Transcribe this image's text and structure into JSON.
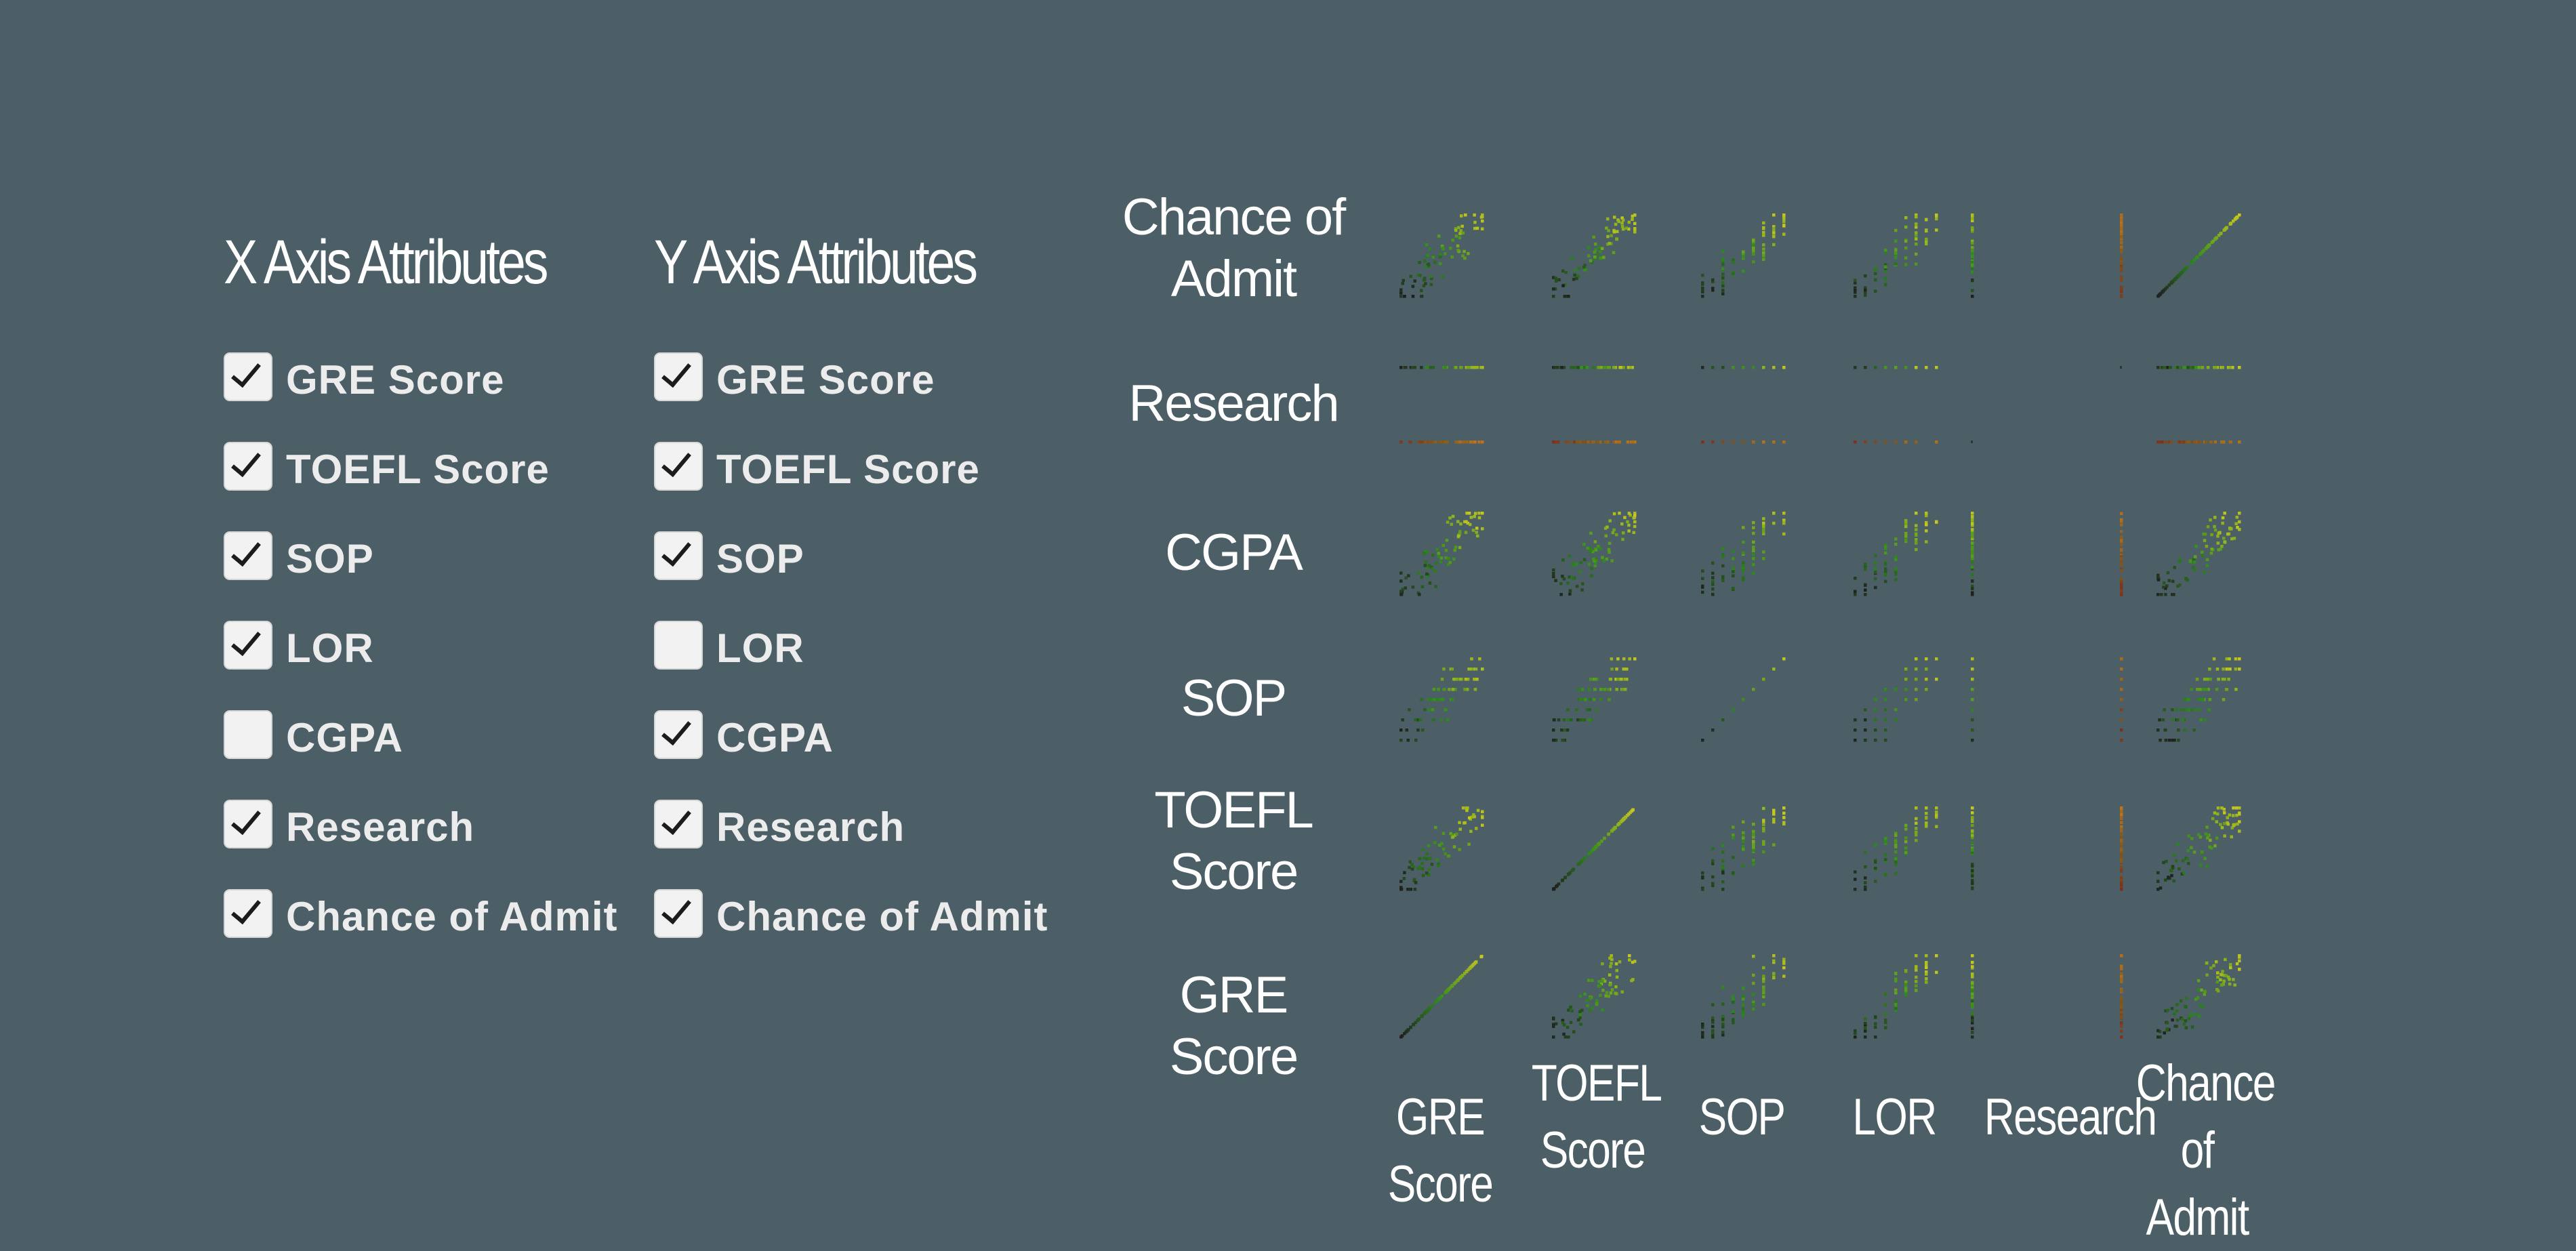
{
  "x_panel": {
    "title": "X Axis Attributes",
    "attributes": [
      {
        "label": "GRE Score",
        "checked": true
      },
      {
        "label": "TOEFL Score",
        "checked": true
      },
      {
        "label": "SOP",
        "checked": true
      },
      {
        "label": "LOR",
        "checked": true
      },
      {
        "label": "CGPA",
        "checked": false
      },
      {
        "label": "Research",
        "checked": true
      },
      {
        "label": "Chance of Admit",
        "checked": true
      }
    ]
  },
  "y_panel": {
    "title": "Y Axis Attributes",
    "attributes": [
      {
        "label": "GRE Score",
        "checked": true
      },
      {
        "label": "TOEFL Score",
        "checked": true
      },
      {
        "label": "SOP",
        "checked": true
      },
      {
        "label": "LOR",
        "checked": false
      },
      {
        "label": "CGPA",
        "checked": true
      },
      {
        "label": "Research",
        "checked": true
      },
      {
        "label": "Chance of Admit",
        "checked": true
      }
    ]
  },
  "chart_data": {
    "type": "scatter",
    "kind": "scatterplot-matrix",
    "row_labels": [
      [
        "Chance of",
        "Admit"
      ],
      [
        "Research"
      ],
      [
        "CGPA"
      ],
      [
        "SOP"
      ],
      [
        "TOEFL",
        "Score"
      ],
      [
        "GRE Score"
      ]
    ],
    "col_labels": [
      [
        "GRE Score"
      ],
      [
        "TOEFL",
        "Score"
      ],
      [
        "SOP"
      ],
      [
        "LOR"
      ],
      [
        "Research"
      ],
      [
        "Chance of",
        "Admit"
      ]
    ],
    "rows": [
      "Chance of Admit",
      "Research",
      "CGPA",
      "SOP",
      "TOEFL Score",
      "GRE Score"
    ],
    "cols": [
      "GRE Score",
      "TOEFL Score",
      "SOP",
      "LOR",
      "Research",
      "Chance of Admit"
    ],
    "color_scale": [
      "#1f1f1f",
      "#2f8a1e",
      "#c8c81e",
      "#b83a1e"
    ]
  }
}
